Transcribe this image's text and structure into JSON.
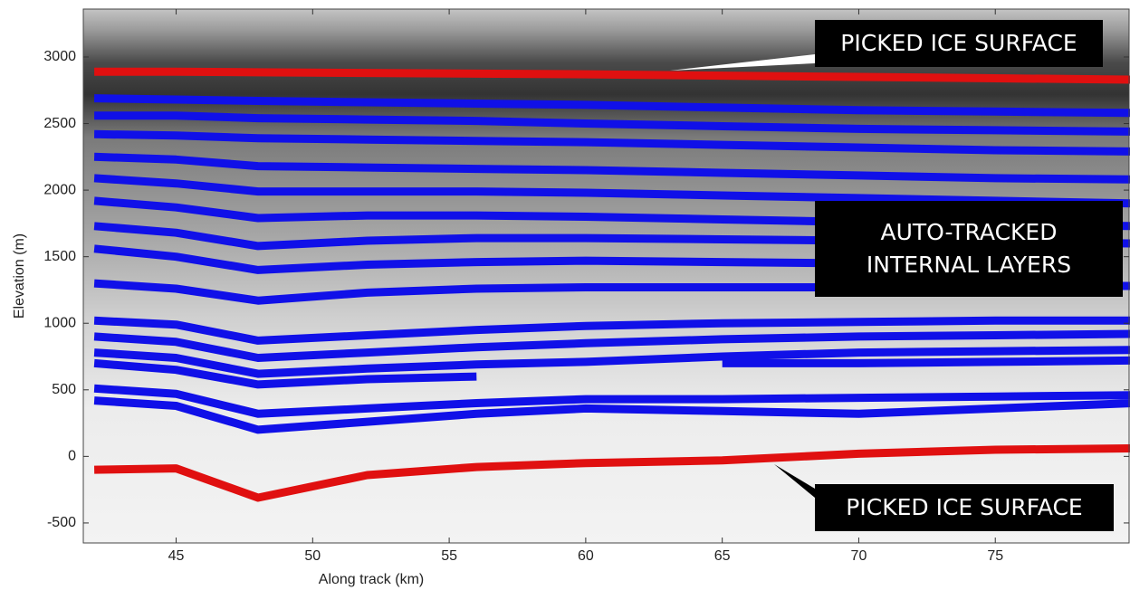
{
  "chart_data": {
    "type": "line",
    "x_label": "Along track (km)",
    "y_label": "Elevation (m)",
    "xlim": [
      41.6,
      79.9
    ],
    "ylim": [
      -650,
      3360
    ],
    "xticks": [
      45,
      50,
      55,
      60,
      65,
      70,
      75
    ],
    "yticks": [
      -500,
      0,
      500,
      1000,
      1500,
      2000,
      2500,
      3000
    ],
    "grid": false,
    "x": [
      42,
      45,
      48,
      52,
      56,
      60,
      65,
      70,
      75,
      80
    ],
    "series": [
      {
        "color": "#e01010",
        "values": [
          2890,
          2890,
          2885,
          2880,
          2875,
          2870,
          2860,
          2850,
          2840,
          2830
        ]
      },
      {
        "color": "#e01010",
        "values": [
          -100,
          -90,
          -310,
          -140,
          -80,
          -50,
          -30,
          20,
          50,
          60
        ]
      },
      {
        "color": "#1010e8",
        "values": [
          2690,
          2680,
          2670,
          2660,
          2650,
          2640,
          2620,
          2600,
          2590,
          2580
        ]
      },
      {
        "color": "#1010e8",
        "values": [
          2560,
          2560,
          2540,
          2530,
          2520,
          2500,
          2480,
          2460,
          2450,
          2440
        ]
      },
      {
        "color": "#1010e8",
        "values": [
          2420,
          2410,
          2390,
          2380,
          2370,
          2360,
          2340,
          2320,
          2300,
          2290
        ]
      },
      {
        "color": "#1010e8",
        "values": [
          2250,
          2230,
          2180,
          2170,
          2160,
          2150,
          2130,
          2110,
          2090,
          2080
        ]
      },
      {
        "color": "#1010e8",
        "values": [
          2090,
          2050,
          1990,
          1990,
          1990,
          1980,
          1960,
          1940,
          1920,
          1900
        ]
      },
      {
        "color": "#1010e8",
        "values": [
          1920,
          1870,
          1790,
          1810,
          1810,
          1800,
          1780,
          1760,
          1740,
          1730
        ]
      },
      {
        "color": "#1010e8",
        "values": [
          1730,
          1680,
          1580,
          1620,
          1640,
          1640,
          1630,
          1620,
          1610,
          1600
        ]
      },
      {
        "color": "#1010e8",
        "values": [
          1560,
          1500,
          1400,
          1440,
          1460,
          1470,
          1460,
          1450,
          null,
          null
        ]
      },
      {
        "color": "#1010e8",
        "values": [
          1300,
          1260,
          1170,
          1230,
          1260,
          1270,
          1270,
          1270,
          1280,
          1280
        ]
      },
      {
        "color": "#1010e8",
        "values": [
          1020,
          990,
          870,
          910,
          950,
          980,
          1000,
          1010,
          1020,
          1020
        ]
      },
      {
        "color": "#1010e8",
        "values": [
          900,
          860,
          740,
          780,
          820,
          850,
          880,
          900,
          910,
          920
        ]
      },
      {
        "color": "#1010e8",
        "values": [
          780,
          740,
          620,
          660,
          690,
          710,
          750,
          780,
          790,
          800
        ]
      },
      {
        "color": "#1010e8",
        "values": [
          700,
          650,
          540,
          580,
          600,
          null,
          700,
          700,
          710,
          720
        ]
      },
      {
        "color": "#1010e8",
        "values": [
          510,
          470,
          320,
          360,
          400,
          430,
          430,
          440,
          450,
          460
        ]
      },
      {
        "color": "#1010e8",
        "values": [
          420,
          380,
          200,
          260,
          320,
          360,
          340,
          320,
          360,
          400
        ]
      }
    ],
    "annotations": [
      {
        "text": "PICKED ICE SURFACE"
      },
      {
        "text": "AUTO-TRACKED INTERNAL LAYERS"
      },
      {
        "text": "PICKED ICE SURFACE"
      }
    ]
  }
}
